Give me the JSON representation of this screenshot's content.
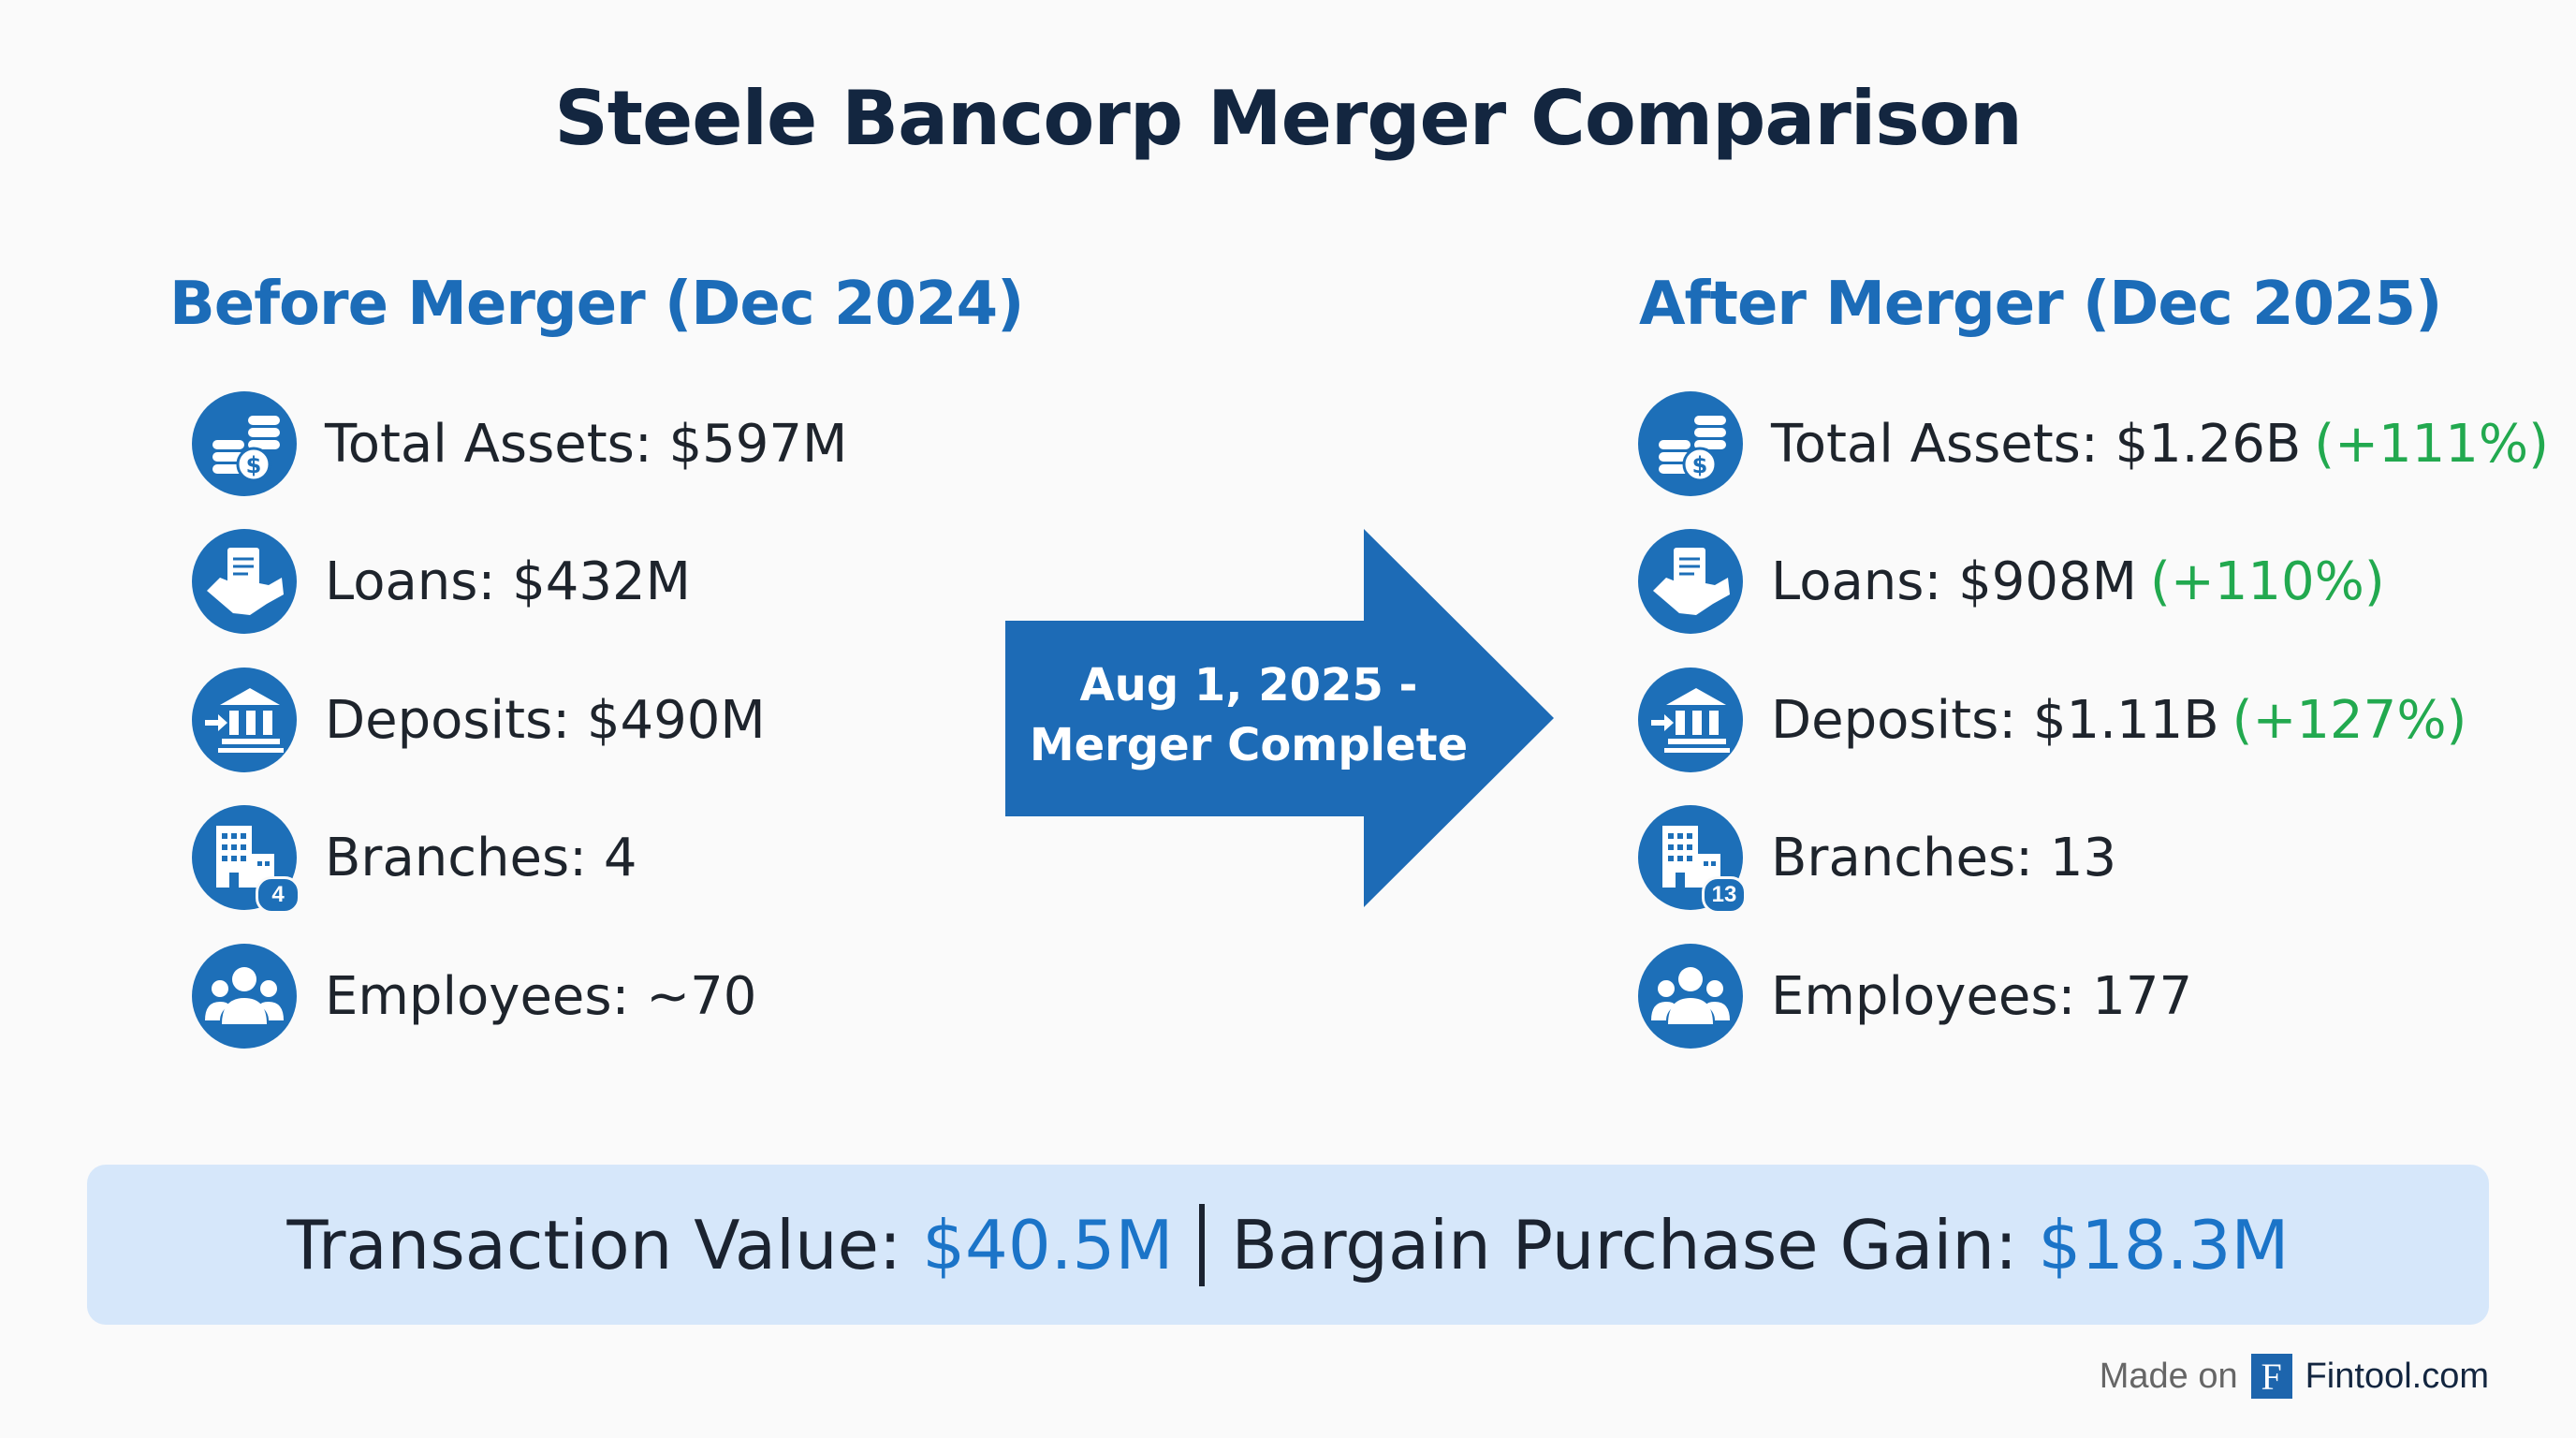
{
  "title": "Steele Bancorp Merger Comparison",
  "before": {
    "heading": "Before Merger (Dec 2024)",
    "items": [
      {
        "icon": "coins-dollar-icon",
        "text": "Total Assets: $597M"
      },
      {
        "icon": "handshake-document-icon",
        "text": "Loans: $432M"
      },
      {
        "icon": "bank-deposit-icon",
        "text": "Deposits: $490M"
      },
      {
        "icon": "buildings-icon",
        "text": "Branches: 4",
        "badge": "4"
      },
      {
        "icon": "people-group-icon",
        "text": "Employees: ~70"
      }
    ]
  },
  "after": {
    "heading": "After Merger (Dec 2025)",
    "items": [
      {
        "icon": "coins-dollar-icon",
        "text": "Total Assets: $1.26B",
        "change": "(+111%)"
      },
      {
        "icon": "handshake-document-icon",
        "text": "Loans: $908M",
        "change": "(+110%)"
      },
      {
        "icon": "bank-deposit-icon",
        "text": "Deposits: $1.11B",
        "change": "(+127%)"
      },
      {
        "icon": "buildings-icon",
        "text": "Branches: 13",
        "badge": "13"
      },
      {
        "icon": "people-group-icon",
        "text": "Employees: 177"
      }
    ]
  },
  "arrow": {
    "line1": "Aug 1, 2025 -",
    "line2": "Merger Complete"
  },
  "banner": {
    "label1": "Transaction Value:",
    "value1": "$40.5M",
    "label2": "Bargain Purchase Gain:",
    "value2": "$18.3M"
  },
  "footer": {
    "made_on": "Made on",
    "logo_letter": "F",
    "brand": "Fintool.com"
  },
  "colors": {
    "title": "#132640",
    "heading": "#1c6cb8",
    "icon_bg": "#1d6fb8",
    "positive": "#22a94f",
    "banner_bg": "#d6e7fa",
    "banner_value": "#1b74c8"
  }
}
